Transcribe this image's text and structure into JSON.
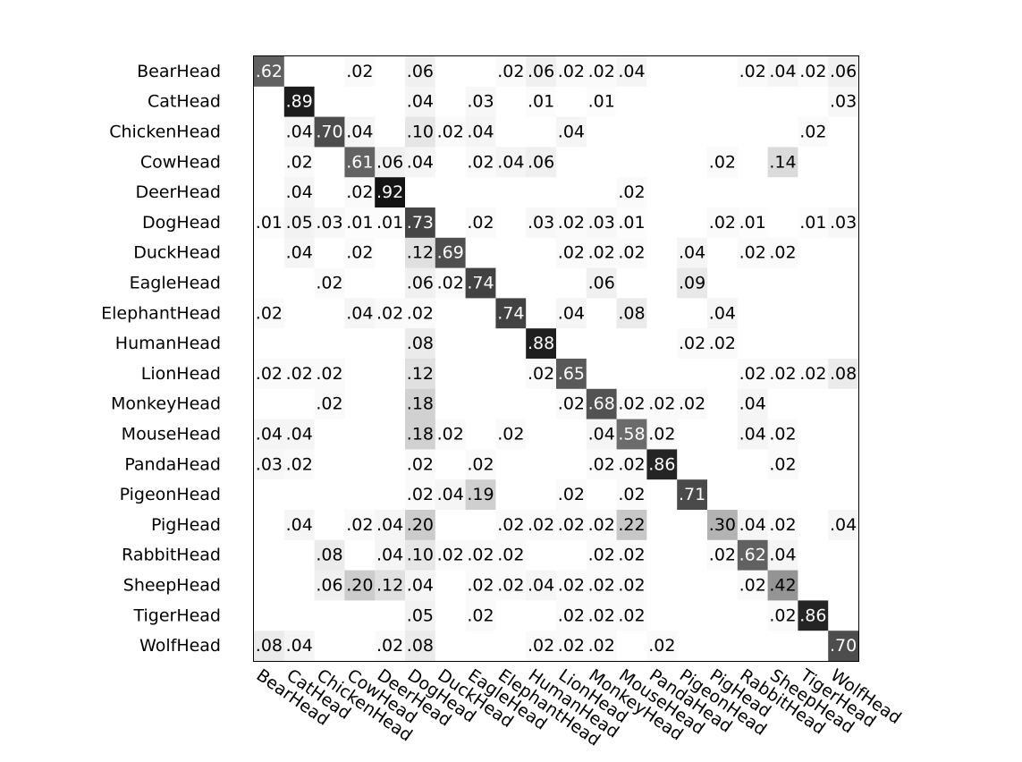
{
  "chart_data": {
    "type": "heatmap",
    "title": "",
    "xlabel": "",
    "ylabel": "",
    "value_range": [
      0,
      1
    ],
    "colormap": "grayscale (white = 0, black = 1)",
    "row_labels": [
      "BearHead",
      "CatHead",
      "ChickenHead",
      "CowHead",
      "DeerHead",
      "DogHead",
      "DuckHead",
      "EagleHead",
      "ElephantHead",
      "HumanHead",
      "LionHead",
      "MonkeyHead",
      "MouseHead",
      "PandaHead",
      "PigeonHead",
      "PigHead",
      "RabbitHead",
      "SheepHead",
      "TigerHead",
      "WolfHead"
    ],
    "col_labels": [
      "BearHead",
      "CatHead",
      "ChickenHead",
      "CowHead",
      "DeerHead",
      "DogHead",
      "DuckHead",
      "EagleHead",
      "ElephantHead",
      "HumanHead",
      "LionHead",
      "MonkeyHead",
      "MouseHead",
      "PandaHead",
      "PigeonHead",
      "PigHead",
      "RabbitHead",
      "SheepHead",
      "TigerHead",
      "WolfHead"
    ],
    "matrix": [
      [
        0.62,
        0,
        0,
        0.02,
        0,
        0.06,
        0,
        0,
        0.02,
        0.06,
        0.02,
        0.02,
        0.04,
        0,
        0,
        0,
        0.02,
        0.04,
        0.02,
        0.06
      ],
      [
        0,
        0.89,
        0,
        0,
        0,
        0.04,
        0,
        0.03,
        0,
        0.01,
        0,
        0.01,
        0,
        0,
        0,
        0,
        0,
        0,
        0,
        0.03
      ],
      [
        0,
        0.04,
        0.7,
        0.04,
        0,
        0.1,
        0.02,
        0.04,
        0,
        0,
        0.04,
        0,
        0,
        0,
        0,
        0,
        0,
        0,
        0.02,
        0
      ],
      [
        0,
        0.02,
        0,
        0.61,
        0.06,
        0.04,
        0,
        0.02,
        0.04,
        0.06,
        0,
        0,
        0,
        0,
        0,
        0.02,
        0,
        0.14,
        0,
        0
      ],
      [
        0,
        0.04,
        0,
        0.02,
        0.92,
        0,
        0,
        0,
        0,
        0,
        0,
        0,
        0.02,
        0,
        0,
        0,
        0,
        0,
        0,
        0
      ],
      [
        0.01,
        0.05,
        0.03,
        0.01,
        0.01,
        0.73,
        0,
        0.02,
        0,
        0.03,
        0.02,
        0.03,
        0.01,
        0,
        0,
        0.02,
        0.01,
        0,
        0.01,
        0.03
      ],
      [
        0,
        0.04,
        0,
        0.02,
        0,
        0.12,
        0.69,
        0,
        0,
        0,
        0.02,
        0.02,
        0.02,
        0,
        0.04,
        0,
        0.02,
        0.02,
        0,
        0
      ],
      [
        0,
        0,
        0.02,
        0,
        0,
        0.06,
        0.02,
        0.74,
        0,
        0,
        0,
        0.06,
        0,
        0,
        0.09,
        0,
        0,
        0,
        0,
        0
      ],
      [
        0.02,
        0,
        0,
        0.04,
        0.02,
        0.02,
        0,
        0,
        0.74,
        0,
        0.04,
        0,
        0.08,
        0,
        0,
        0.04,
        0,
        0,
        0,
        0
      ],
      [
        0,
        0,
        0,
        0,
        0,
        0.08,
        0,
        0,
        0,
        0.88,
        0,
        0,
        0,
        0,
        0.02,
        0.02,
        0,
        0,
        0,
        0
      ],
      [
        0.02,
        0.02,
        0.02,
        0,
        0,
        0.12,
        0,
        0,
        0,
        0.02,
        0.65,
        0,
        0,
        0,
        0,
        0,
        0.02,
        0.02,
        0.02,
        0.08
      ],
      [
        0,
        0,
        0.02,
        0,
        0,
        0.18,
        0,
        0,
        0,
        0,
        0.02,
        0.68,
        0.02,
        0.02,
        0.02,
        0,
        0.04,
        0,
        0,
        0
      ],
      [
        0.04,
        0.04,
        0,
        0,
        0,
        0.18,
        0.02,
        0,
        0.02,
        0,
        0,
        0.04,
        0.58,
        0.02,
        0,
        0,
        0.04,
        0.02,
        0,
        0
      ],
      [
        0.03,
        0.02,
        0,
        0,
        0,
        0.02,
        0,
        0.02,
        0,
        0,
        0,
        0.02,
        0.02,
        0.86,
        0,
        0,
        0,
        0.02,
        0,
        0
      ],
      [
        0,
        0,
        0,
        0,
        0,
        0.02,
        0.04,
        0.19,
        0,
        0,
        0.02,
        0,
        0.02,
        0,
        0.71,
        0,
        0,
        0,
        0,
        0
      ],
      [
        0,
        0.04,
        0,
        0.02,
        0.04,
        0.2,
        0,
        0,
        0.02,
        0.02,
        0.02,
        0.02,
        0.22,
        0,
        0,
        0.3,
        0.04,
        0.02,
        0,
        0.04
      ],
      [
        0,
        0,
        0.08,
        0,
        0.04,
        0.1,
        0.02,
        0.02,
        0.02,
        0,
        0,
        0.02,
        0.02,
        0,
        0,
        0.02,
        0.62,
        0.04,
        0,
        0
      ],
      [
        0,
        0,
        0.06,
        0.2,
        0.12,
        0.04,
        0,
        0.02,
        0.02,
        0.04,
        0.02,
        0.02,
        0.02,
        0,
        0,
        0,
        0.02,
        0.42,
        0,
        0
      ],
      [
        0,
        0,
        0,
        0,
        0,
        0.05,
        0,
        0.02,
        0,
        0,
        0.02,
        0.02,
        0.02,
        0,
        0,
        0,
        0,
        0.02,
        0.86,
        0
      ],
      [
        0.08,
        0.04,
        0,
        0,
        0.02,
        0.08,
        0,
        0,
        0,
        0.02,
        0.02,
        0.02,
        0,
        0.02,
        0,
        0,
        0,
        0,
        0,
        0.7
      ]
    ],
    "cell_labels": [
      [
        ".62",
        "",
        "",
        ".02",
        "",
        ".06",
        "",
        "",
        ".02",
        ".06",
        ".02",
        ".02",
        ".04",
        "",
        "",
        "",
        ".02",
        ".04",
        ".02",
        ".06"
      ],
      [
        "",
        ".89",
        "",
        "",
        "",
        ".04",
        "",
        ".03",
        "",
        ".01",
        "",
        ".01",
        "",
        "",
        "",
        "",
        "",
        "",
        "",
        ".03"
      ],
      [
        "",
        ".04",
        ".70",
        ".04",
        "",
        ".10",
        ".02",
        ".04",
        "",
        "",
        ".04",
        "",
        "",
        "",
        "",
        "",
        "",
        "",
        ".02",
        ""
      ],
      [
        "",
        ".02",
        "",
        ".61",
        ".06",
        ".04",
        "",
        ".02",
        ".04",
        ".06",
        "",
        "",
        "",
        "",
        "",
        ".02",
        "",
        ".14",
        "",
        ""
      ],
      [
        "",
        ".04",
        "",
        ".02",
        ".92",
        "",
        "",
        "",
        "",
        "",
        "",
        "",
        ".02",
        "",
        "",
        "",
        "",
        "",
        "",
        ""
      ],
      [
        ".01",
        ".05",
        ".03",
        ".01",
        ".01",
        ".73",
        "",
        ".02",
        "",
        ".03",
        ".02",
        ".03",
        ".01",
        "",
        "",
        ".02",
        ".01",
        "",
        ".01",
        ".03"
      ],
      [
        "",
        ".04",
        "",
        ".02",
        "",
        ".12",
        ".69",
        "",
        "",
        "",
        ".02",
        ".02",
        ".02",
        "",
        ".04",
        "",
        ".02",
        ".02",
        "",
        ""
      ],
      [
        "",
        "",
        ".02",
        "",
        "",
        ".06",
        ".02",
        ".74",
        "",
        "",
        "",
        ".06",
        "",
        "",
        ".09",
        "",
        "",
        "",
        "",
        ""
      ],
      [
        ".02",
        "",
        "",
        ".04",
        ".02",
        ".02",
        "",
        "",
        ".74",
        "",
        ".04",
        "",
        ".08",
        "",
        "",
        ".04",
        "",
        "",
        "",
        ""
      ],
      [
        "",
        "",
        "",
        "",
        "",
        ".08",
        "",
        "",
        "",
        ".88",
        "",
        "",
        "",
        "",
        ".02",
        ".02",
        "",
        "",
        "",
        ""
      ],
      [
        ".02",
        ".02",
        ".02",
        "",
        "",
        ".12",
        "",
        "",
        "",
        ".02",
        ".65",
        "",
        "",
        "",
        "",
        "",
        ".02",
        ".02",
        ".02",
        ".08"
      ],
      [
        "",
        "",
        ".02",
        "",
        "",
        ".18",
        "",
        "",
        "",
        "",
        ".02",
        ".68",
        ".02",
        ".02",
        ".02",
        "",
        ".04",
        "",
        "",
        ""
      ],
      [
        ".04",
        ".04",
        "",
        "",
        "",
        ".18",
        ".02",
        "",
        ".02",
        "",
        "",
        ".04",
        ".58",
        ".02",
        "",
        "",
        ".04",
        ".02",
        "",
        ""
      ],
      [
        ".03",
        ".02",
        "",
        "",
        "",
        ".02",
        "",
        ".02",
        "",
        "",
        "",
        ".02",
        ".02",
        ".86",
        "",
        "",
        "",
        ".02",
        "",
        ""
      ],
      [
        "",
        "",
        "",
        "",
        "",
        ".02",
        ".04",
        ".19",
        "",
        "",
        ".02",
        "",
        ".02",
        "",
        ".71",
        "",
        "",
        "",
        "",
        ""
      ],
      [
        "",
        ".04",
        "",
        ".02",
        ".04",
        ".20",
        "",
        "",
        ".02",
        ".02",
        ".02",
        ".02",
        ".22",
        "",
        "",
        ".30",
        ".04",
        ".02",
        "",
        ".04"
      ],
      [
        "",
        "",
        ".08",
        "",
        ".04",
        ".10",
        ".02",
        ".02",
        ".02",
        "",
        "",
        ".02",
        ".02",
        "",
        "",
        ".02",
        ".62",
        ".04",
        "",
        ""
      ],
      [
        "",
        "",
        ".06",
        ".20",
        ".12",
        ".04",
        "",
        ".02",
        ".02",
        ".04",
        ".02",
        ".02",
        ".02",
        "",
        "",
        "",
        ".02",
        ".42",
        "",
        ""
      ],
      [
        "",
        "",
        "",
        "",
        "",
        ".05",
        "",
        ".02",
        "",
        "",
        ".02",
        ".02",
        ".02",
        "",
        "",
        "",
        "",
        ".02",
        ".86",
        ""
      ],
      [
        ".08",
        ".04",
        "",
        "",
        ".02",
        ".08",
        "",
        "",
        "",
        ".02",
        ".02",
        ".02",
        "",
        ".02",
        "",
        "",
        "",
        "",
        "",
        ".70"
      ]
    ],
    "grid": false,
    "legend": "none"
  }
}
